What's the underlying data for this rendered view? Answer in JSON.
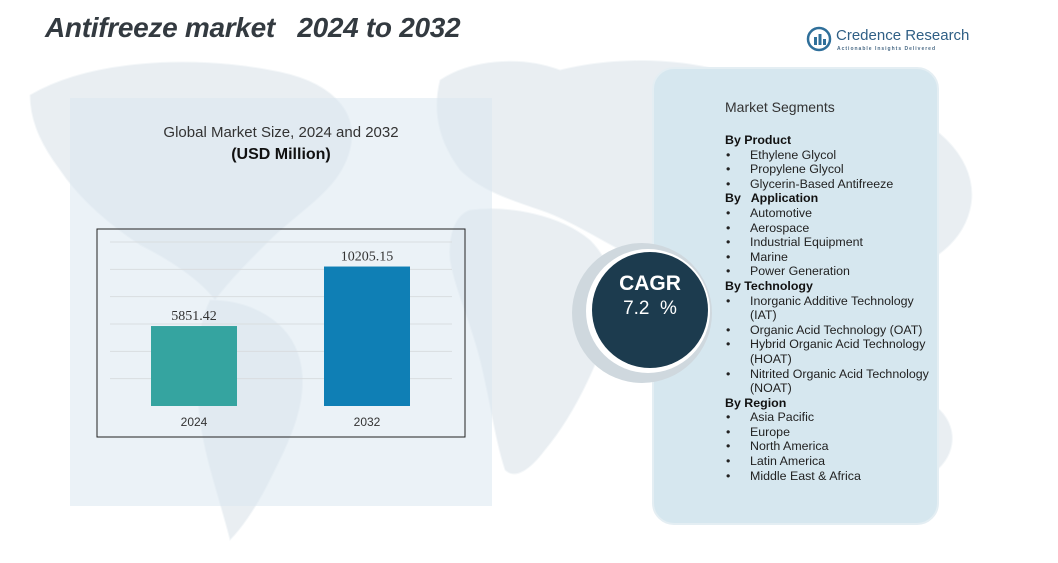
{
  "title": "Antifreeze market   2024 to 2032",
  "logo": {
    "name": "Credence Research",
    "tagline": "Actionable Insights Delivered"
  },
  "chart_data": {
    "type": "bar",
    "title": "Global Market Size, 2024 and 2032",
    "subtitle": "(USD Million)",
    "categories": [
      "2024",
      "2032"
    ],
    "values": [
      5851.42,
      10205.15
    ],
    "value_labels": [
      "5851.42",
      "10205.15"
    ],
    "colors": [
      "#35a4a0",
      "#0f7fb5"
    ],
    "ylim": [
      0,
      12000
    ],
    "grid": true
  },
  "cagr": {
    "label": "CAGR",
    "value": "7.2  %"
  },
  "segments": {
    "heading": "Market Segments",
    "groups": [
      {
        "title": "By Product",
        "items": [
          "Ethylene Glycol",
          "Propylene Glycol",
          "Glycerin-Based Antifreeze"
        ]
      },
      {
        "title": "By   Application",
        "items": [
          "Automotive",
          "Aerospace",
          "Industrial Equipment",
          "Marine",
          "Power Generation"
        ]
      },
      {
        "title": "By Technology",
        "items": [
          "Inorganic Additive Technology (IAT)",
          "Organic Acid Technology (OAT)",
          "Hybrid Organic Acid Technology (HOAT)",
          "Nitrited Organic Acid Technology (NOAT)"
        ]
      },
      {
        "title": "By Region",
        "items": [
          "Asia Pacific",
          "Europe",
          "North America",
          "Latin America",
          "Middle East & Africa"
        ]
      }
    ]
  }
}
